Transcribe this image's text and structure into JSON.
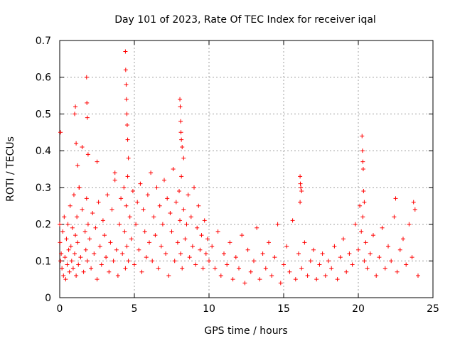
{
  "chart_data": {
    "type": "scatter",
    "title": "Day 101 of 2023, Rate Of TEC Index for receiver iqal",
    "xlabel": "GPS time / hours",
    "ylabel": "ROTI / TECUs",
    "xlim": [
      0,
      25
    ],
    "ylim": [
      0,
      0.7
    ],
    "xticks": [
      0,
      5,
      10,
      15,
      20,
      25
    ],
    "yticks": [
      0,
      0.1,
      0.2,
      0.3,
      0.4,
      0.5,
      0.6,
      0.7
    ],
    "xtick_labels": [
      "0",
      "5",
      "10",
      "15",
      "20",
      "25"
    ],
    "ytick_labels": [
      "0",
      "0.1",
      "0.2",
      "0.3",
      "0.4",
      "0.5",
      "0.6",
      "0.7"
    ],
    "grid": true,
    "marker": "+",
    "marker_color": "#ff0000",
    "series": [
      {
        "name": "ROTI",
        "x": [
          0.0,
          0.02,
          0.05,
          0.1,
          0.15,
          0.2,
          0.25,
          0.3,
          0.35,
          0.4,
          0.45,
          0.5,
          0.55,
          0.6,
          0.65,
          0.7,
          0.75,
          0.8,
          0.85,
          0.9,
          0.95,
          1.0,
          1.05,
          1.1,
          1.15,
          1.2,
          1.25,
          1.3,
          1.4,
          1.5,
          1.6,
          1.7,
          1.75,
          1.8,
          1.85,
          1.9,
          2.0,
          2.1,
          2.2,
          2.3,
          2.4,
          2.5,
          2.6,
          2.7,
          2.8,
          2.9,
          3.0,
          3.1,
          3.2,
          3.3,
          3.4,
          3.5,
          3.6,
          3.7,
          3.8,
          3.9,
          4.0,
          4.1,
          4.2,
          4.3,
          4.35,
          4.4,
          4.45,
          4.5,
          4.55,
          4.6,
          4.7,
          4.8,
          4.9,
          5.0,
          5.1,
          5.2,
          5.3,
          5.4,
          5.5,
          5.6,
          5.7,
          5.8,
          5.9,
          6.0,
          6.1,
          6.2,
          6.3,
          6.4,
          6.5,
          6.6,
          6.7,
          6.8,
          6.9,
          7.0,
          7.1,
          7.2,
          7.3,
          7.4,
          7.5,
          7.6,
          7.7,
          7.8,
          7.9,
          8.0,
          8.05,
          8.1,
          8.15,
          8.2,
          8.3,
          8.4,
          8.5,
          8.6,
          8.7,
          8.8,
          8.9,
          9.0,
          9.1,
          9.2,
          9.3,
          9.4,
          9.5,
          9.6,
          9.7,
          9.8,
          9.9,
          10.0,
          10.2,
          10.4,
          10.6,
          10.8,
          11.0,
          11.2,
          11.4,
          11.6,
          11.8,
          12.0,
          12.2,
          12.4,
          12.6,
          12.8,
          13.0,
          13.2,
          13.4,
          13.6,
          13.8,
          14.0,
          14.2,
          14.4,
          14.6,
          14.8,
          15.0,
          15.2,
          15.4,
          15.6,
          15.8,
          16.0,
          16.1,
          16.2,
          16.4,
          16.6,
          16.8,
          17.0,
          17.2,
          17.4,
          17.6,
          17.8,
          18.0,
          18.2,
          18.4,
          18.6,
          18.8,
          19.0,
          19.2,
          19.4,
          19.6,
          19.8,
          20.0,
          20.1,
          20.2,
          20.3,
          20.4,
          20.5,
          20.6,
          20.8,
          21.0,
          21.2,
          21.4,
          21.6,
          21.8,
          22.0,
          22.2,
          22.4,
          22.6,
          22.8,
          23.0,
          23.2,
          23.4,
          23.6,
          23.8,
          24.0,
          0.05,
          1.0,
          1.05,
          1.1,
          1.2,
          1.3,
          1.5,
          1.8,
          1.82,
          1.85,
          1.9,
          2.5,
          3.7,
          4.4,
          4.42,
          4.45,
          4.47,
          4.5,
          4.52,
          4.55,
          4.6,
          8.05,
          8.07,
          8.1,
          8.12,
          8.15,
          8.2,
          8.3,
          16.1,
          16.12,
          16.15,
          16.2,
          20.25,
          20.28,
          20.3,
          20.33,
          20.35,
          20.4,
          22.5,
          23.7
        ],
        "y": [
          0.2,
          0.15,
          0.1,
          0.12,
          0.08,
          0.18,
          0.06,
          0.22,
          0.11,
          0.05,
          0.16,
          0.09,
          0.2,
          0.13,
          0.07,
          0.25,
          0.14,
          0.1,
          0.19,
          0.08,
          0.28,
          0.12,
          0.17,
          0.06,
          0.22,
          0.15,
          0.09,
          0.3,
          0.11,
          0.24,
          0.07,
          0.18,
          0.13,
          0.27,
          0.1,
          0.2,
          0.16,
          0.08,
          0.23,
          0.12,
          0.19,
          0.05,
          0.26,
          0.14,
          0.09,
          0.21,
          0.17,
          0.11,
          0.28,
          0.07,
          0.15,
          0.24,
          0.1,
          0.32,
          0.13,
          0.06,
          0.2,
          0.27,
          0.12,
          0.3,
          0.18,
          0.08,
          0.25,
          0.14,
          0.33,
          0.1,
          0.22,
          0.16,
          0.29,
          0.09,
          0.2,
          0.26,
          0.13,
          0.31,
          0.07,
          0.24,
          0.18,
          0.11,
          0.28,
          0.15,
          0.34,
          0.1,
          0.22,
          0.17,
          0.3,
          0.08,
          0.25,
          0.14,
          0.2,
          0.32,
          0.12,
          0.27,
          0.06,
          0.23,
          0.18,
          0.35,
          0.1,
          0.26,
          0.15,
          0.29,
          0.21,
          0.12,
          0.33,
          0.08,
          0.24,
          0.16,
          0.2,
          0.28,
          0.11,
          0.22,
          0.14,
          0.3,
          0.09,
          0.19,
          0.25,
          0.13,
          0.17,
          0.08,
          0.21,
          0.12,
          0.16,
          0.1,
          0.14,
          0.08,
          0.18,
          0.06,
          0.12,
          0.09,
          0.15,
          0.05,
          0.11,
          0.08,
          0.17,
          0.04,
          0.13,
          0.07,
          0.1,
          0.19,
          0.05,
          0.12,
          0.08,
          0.15,
          0.06,
          0.11,
          0.2,
          0.04,
          0.09,
          0.14,
          0.07,
          0.21,
          0.05,
          0.12,
          0.26,
          0.08,
          0.15,
          0.06,
          0.1,
          0.13,
          0.05,
          0.09,
          0.12,
          0.06,
          0.1,
          0.08,
          0.14,
          0.05,
          0.11,
          0.16,
          0.07,
          0.12,
          0.09,
          0.2,
          0.13,
          0.25,
          0.18,
          0.22,
          0.1,
          0.15,
          0.08,
          0.12,
          0.17,
          0.06,
          0.11,
          0.19,
          0.08,
          0.14,
          0.1,
          0.22,
          0.07,
          0.13,
          0.16,
          0.09,
          0.2,
          0.11,
          0.24,
          0.06,
          0.45,
          0.5,
          0.52,
          0.42,
          0.36,
          0.3,
          0.41,
          0.6,
          0.53,
          0.49,
          0.39,
          0.37,
          0.34,
          0.67,
          0.62,
          0.58,
          0.54,
          0.5,
          0.47,
          0.43,
          0.38,
          0.54,
          0.52,
          0.48,
          0.45,
          0.43,
          0.41,
          0.38,
          0.33,
          0.31,
          0.3,
          0.29,
          0.44,
          0.4,
          0.37,
          0.35,
          0.29,
          0.26,
          0.27,
          0.26
        ]
      }
    ]
  }
}
